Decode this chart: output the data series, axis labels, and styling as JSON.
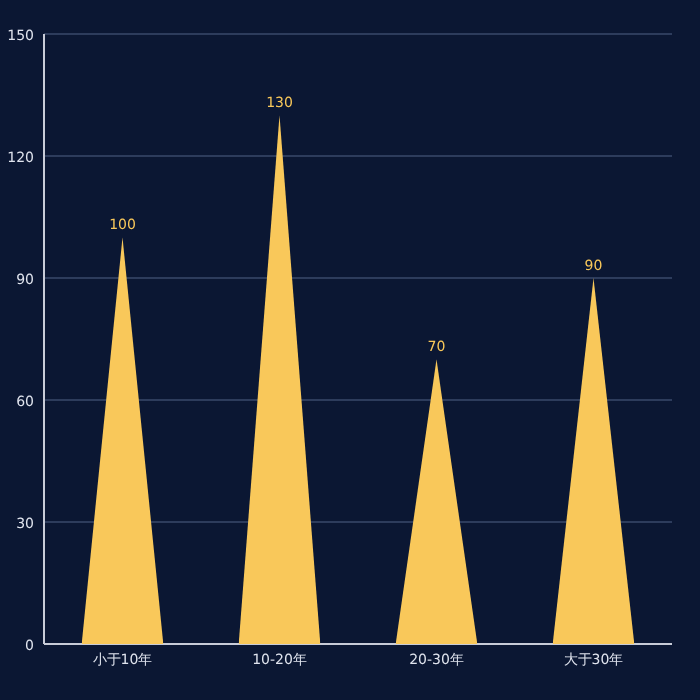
{
  "chart_data": {
    "type": "bar",
    "categories": [
      "小于10年",
      "10-20年",
      "20-30年",
      "大于30年"
    ],
    "values": [
      100,
      130,
      70,
      90
    ],
    "color": "#f9c85a",
    "ylim": [
      0,
      150
    ],
    "yticks": [
      0,
      30,
      60,
      90,
      120,
      150
    ],
    "grid": "y",
    "data_labels": true
  }
}
